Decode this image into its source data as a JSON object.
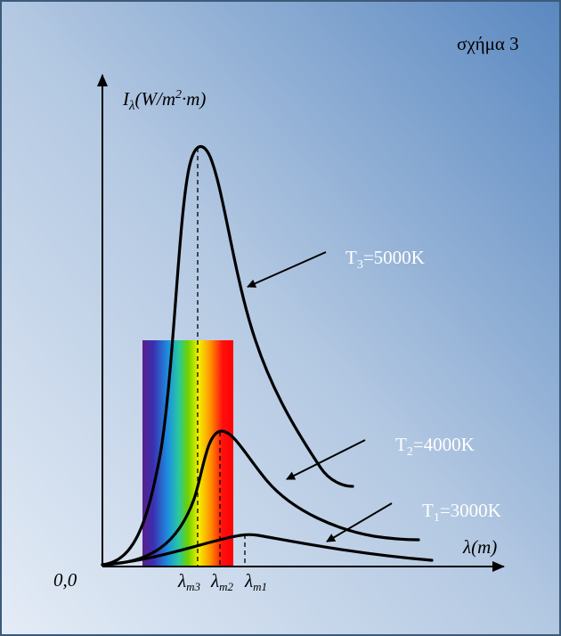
{
  "figure_label": "σχήμα 3",
  "y_axis_label": {
    "symbol": "I",
    "subscript": "λ",
    "unit_start": "(W/m",
    "superscript": "2",
    "unit_end": "·m)"
  },
  "x_axis_label": "λ(m)",
  "origin_label": "0,0",
  "curves": [
    {
      "symbol": "T",
      "subscript": "3",
      "text": "=5000K"
    },
    {
      "symbol": "T",
      "subscript": "2",
      "text": "=4000K"
    },
    {
      "symbol": "T",
      "subscript": "1",
      "text": "=3000K"
    }
  ],
  "peak_labels": [
    {
      "symbol": "λ",
      "subscript": "m3"
    },
    {
      "symbol": "λ",
      "subscript": "m2"
    },
    {
      "symbol": "λ",
      "subscript": "m1"
    }
  ]
}
